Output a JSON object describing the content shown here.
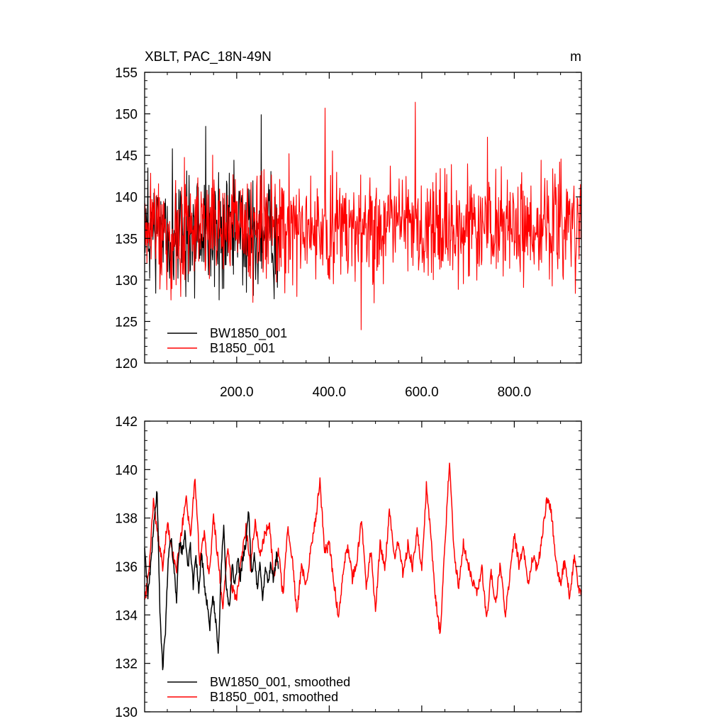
{
  "title": "XBLT, PAC_18N-49N",
  "units": "m",
  "chart_data": [
    {
      "type": "line",
      "title": "XBLT, PAC_18N-49N",
      "units": "m",
      "xlim": [
        1,
        945
      ],
      "ylim": [
        120,
        155
      ],
      "yticks": [
        120,
        125,
        130,
        135,
        140,
        145,
        150,
        155
      ],
      "xticks": [
        200,
        400,
        600,
        800
      ],
      "xtick_labels": [
        "200.0",
        "400.0",
        "600.0",
        "800.0"
      ],
      "legend": "bottom-left",
      "series": [
        {
          "name": "BW1850_001",
          "color": "#000000",
          "x_start": 1,
          "x_end": 290,
          "base_value": 135.5,
          "noise_amplitude": 4.5,
          "max": 150.0,
          "min": 124.2,
          "sample_values": [
            139.5,
            128.4,
            141.2,
            133.6,
            145.8,
            130.2,
            138.9,
            142.6,
            127.8,
            136.4,
            148.5,
            131.5,
            137.2,
            125.1,
            143.9,
            135.0,
            140.7,
            129.3,
            146.3,
            134.2,
            149.9,
            132.8,
            147.4,
            133.5
          ]
        },
        {
          "name": "B1850_001",
          "color": "#ff0000",
          "x_start": 1,
          "x_end": 945,
          "base_value": 136.2,
          "noise_amplitude": 4.2,
          "max": 152.4,
          "min": 123.4,
          "sample_values": [
            141.0,
            128.0,
            147.7,
            133.5,
            152.4,
            127.3,
            139.1,
            145.2,
            126.2,
            150.7,
            131.0,
            124.0,
            148.6,
            135.4,
            151.4,
            123.4,
            143.9,
            130.5,
            147.2,
            125.7,
            146.5,
            132.1,
            144.2,
            139.3
          ]
        }
      ]
    },
    {
      "type": "line",
      "xlim": [
        1,
        945
      ],
      "ylim": [
        130,
        142
      ],
      "yticks": [
        130,
        132,
        134,
        136,
        138,
        140,
        142
      ],
      "legend": "bottom-left",
      "series": [
        {
          "name": "BW1850_001, smoothed",
          "color": "#000000",
          "x": [
            1,
            8,
            15,
            22,
            28,
            34,
            40,
            46,
            52,
            58,
            64,
            70,
            76,
            82,
            88,
            94,
            100,
            106,
            112,
            118,
            124,
            130,
            136,
            142,
            148,
            154,
            160,
            166,
            172,
            178,
            184,
            190,
            196,
            202,
            208,
            214,
            220,
            226,
            232,
            238,
            244,
            250,
            256,
            262,
            268,
            274,
            280,
            286,
            290
          ],
          "values": [
            136.7,
            134.8,
            136.2,
            138.1,
            139.2,
            134.1,
            131.8,
            133.4,
            136.3,
            137.2,
            136.0,
            134.6,
            137.1,
            136.5,
            137.4,
            135.9,
            136.8,
            135.2,
            136.4,
            135.0,
            136.6,
            135.3,
            134.4,
            133.5,
            134.8,
            133.9,
            132.4,
            135.6,
            137.7,
            135.0,
            134.3,
            136.1,
            135.2,
            136.3,
            135.6,
            136.4,
            137.0,
            138.4,
            135.7,
            136.5,
            135.1,
            136.0,
            134.7,
            135.9,
            135.3,
            136.2,
            135.4,
            136.6,
            135.9
          ]
        },
        {
          "name": "B1850_001, smoothed",
          "color": "#ff0000",
          "x": [
            1,
            10,
            20,
            30,
            40,
            50,
            60,
            70,
            80,
            90,
            100,
            110,
            120,
            130,
            140,
            150,
            160,
            170,
            180,
            190,
            200,
            210,
            220,
            230,
            240,
            250,
            260,
            270,
            280,
            290,
            300,
            310,
            320,
            330,
            340,
            350,
            360,
            370,
            380,
            390,
            400,
            410,
            420,
            430,
            440,
            450,
            460,
            470,
            480,
            490,
            500,
            510,
            520,
            530,
            540,
            550,
            560,
            570,
            580,
            590,
            600,
            610,
            620,
            630,
            640,
            650,
            660,
            670,
            680,
            690,
            700,
            710,
            720,
            730,
            740,
            750,
            760,
            770,
            780,
            790,
            800,
            810,
            820,
            830,
            840,
            850,
            860,
            870,
            880,
            890,
            900,
            910,
            920,
            930,
            940,
            945
          ],
          "values": [
            134.5,
            135.8,
            138.6,
            137.2,
            136.0,
            137.8,
            136.6,
            135.9,
            137.3,
            138.9,
            137.2,
            139.6,
            136.1,
            137.4,
            135.5,
            138.0,
            136.2,
            134.3,
            136.8,
            135.1,
            134.7,
            136.3,
            137.6,
            136.0,
            137.9,
            136.5,
            137.3,
            137.8,
            135.6,
            136.7,
            134.8,
            137.6,
            136.4,
            134.1,
            136.0,
            135.2,
            136.8,
            137.9,
            139.5,
            136.6,
            136.9,
            135.4,
            133.9,
            135.8,
            136.9,
            135.5,
            136.3,
            138.0,
            135.2,
            136.7,
            134.1,
            137.0,
            135.8,
            138.3,
            136.4,
            137.1,
            135.6,
            136.9,
            136.0,
            137.5,
            135.9,
            139.3,
            137.1,
            134.6,
            133.2,
            136.9,
            140.4,
            136.5,
            135.2,
            137.0,
            136.1,
            135.4,
            134.9,
            136.0,
            133.8,
            135.7,
            134.5,
            136.2,
            133.9,
            135.5,
            137.3,
            136.1,
            136.8,
            135.2,
            136.4,
            135.9,
            137.2,
            138.8,
            138.3,
            136.1,
            135.3,
            136.3,
            134.6,
            136.5,
            135.0,
            135.0
          ]
        }
      ]
    }
  ]
}
